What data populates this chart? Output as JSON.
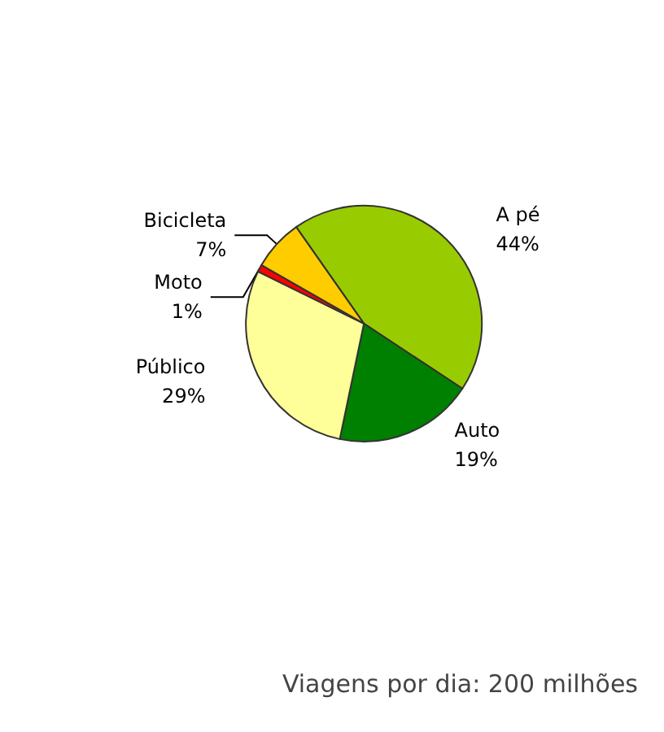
{
  "chart_data": {
    "type": "pie",
    "categories": [
      "A pé",
      "Auto",
      "Público",
      "Moto",
      "Bicicleta"
    ],
    "values": [
      44,
      19,
      29,
      1,
      7
    ],
    "value_labels": [
      "44%",
      "19%",
      "29%",
      "1%",
      "7%"
    ],
    "colors": [
      "#99cc00",
      "#008000",
      "#ffff99",
      "#ff0000",
      "#ffcc00"
    ],
    "annotations": [
      "Viagens por dia: 200 milhões"
    ],
    "legend": false
  }
}
